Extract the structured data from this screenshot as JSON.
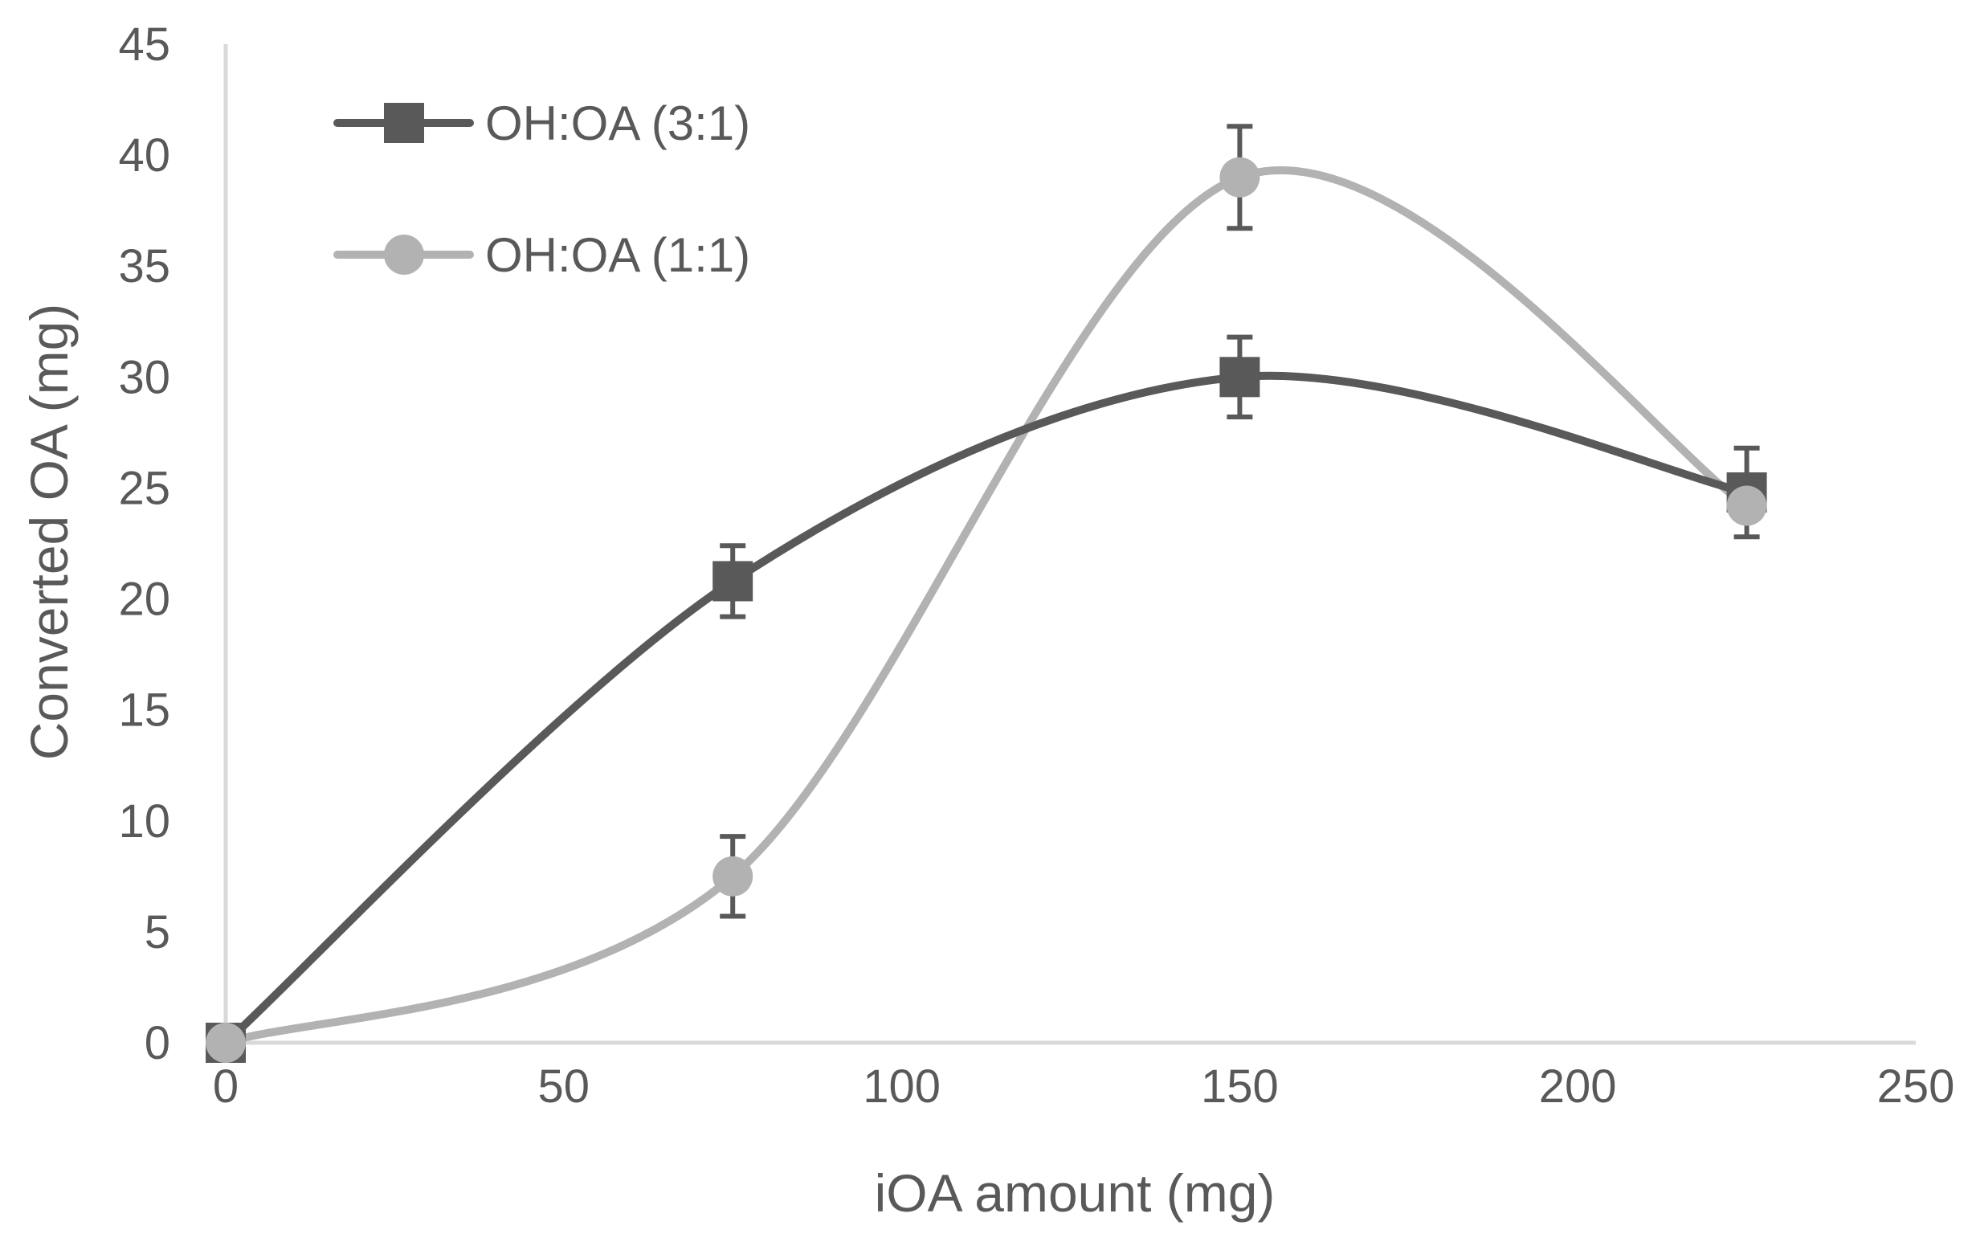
{
  "chart_data": {
    "type": "line",
    "title": "",
    "xlabel": "iOA amount (mg)",
    "ylabel": "Converted OA (mg)",
    "xlim": [
      0,
      250
    ],
    "ylim": [
      0,
      45
    ],
    "xticks": [
      0,
      50,
      100,
      150,
      200,
      250
    ],
    "yticks": [
      0,
      5,
      10,
      15,
      20,
      25,
      30,
      35,
      40,
      45
    ],
    "grid": false,
    "smooth": true,
    "legend_position": "top-left",
    "series": [
      {
        "name": "OH:OA (3:1)",
        "marker": "square",
        "color": "#595959",
        "x": [
          0,
          75,
          150,
          225
        ],
        "y": [
          0,
          20.8,
          30,
          24.8
        ],
        "error": [
          0,
          1.6,
          1.8,
          2.0
        ]
      },
      {
        "name": "OH:OA (1:1)",
        "marker": "circle",
        "color": "#b2b2b2",
        "x": [
          0,
          75,
          150,
          225
        ],
        "y": [
          0,
          7.5,
          39,
          24.2
        ],
        "error": [
          0,
          1.8,
          2.3,
          0
        ]
      }
    ]
  }
}
